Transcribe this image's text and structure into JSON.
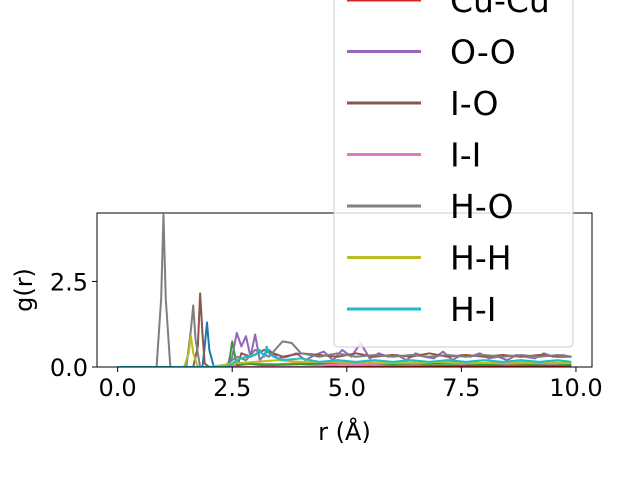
{
  "chart_data": {
    "type": "line",
    "title": "",
    "xlabel": "r (Å)",
    "ylabel": "g(r)",
    "xlim": [
      -0.45,
      10.35
    ],
    "ylim": [
      0,
      4.5
    ],
    "xticks": [
      0.0,
      2.5,
      5.0,
      7.5,
      10.0
    ],
    "xtick_labels": [
      "0.0",
      "2.5",
      "5.0",
      "7.5",
      "10.0"
    ],
    "yticks": [
      0.0,
      2.5
    ],
    "ytick_labels": [
      "0.0",
      "2.5"
    ],
    "grid": false,
    "legend": {
      "placement": "upper-right, overflowing above the axes",
      "entries": [
        {
          "label": "Cu-Cu",
          "color": "#d62728"
        },
        {
          "label": "O-O",
          "color": "#9467bd"
        },
        {
          "label": "I-O",
          "color": "#8c564b"
        },
        {
          "label": "I-I",
          "color": "#e377c2"
        },
        {
          "label": "H-O",
          "color": "#7f7f7f"
        },
        {
          "label": "H-H",
          "color": "#bcbd22"
        },
        {
          "label": "H-I",
          "color": "#17becf"
        }
      ]
    },
    "series": [
      {
        "name": "",
        "color": "#1f77b4",
        "x": [
          0.0,
          1.8,
          1.85,
          1.9,
          1.95,
          2.0,
          2.1,
          2.4,
          3.0,
          4.0,
          5.0,
          6.0,
          7.0,
          8.0,
          9.0,
          9.9
        ],
        "y": [
          0.0,
          0.0,
          0.0,
          0.6,
          1.3,
          0.5,
          0.0,
          0.0,
          0.0,
          0.0,
          0.02,
          0.02,
          0.03,
          0.03,
          0.04,
          0.04
        ]
      },
      {
        "name": "",
        "color": "#ff7f0e",
        "x": [
          0.0,
          2.3,
          2.6,
          3.0,
          3.5,
          4.0,
          4.5,
          5.0,
          5.5,
          6.0,
          6.5,
          7.0,
          7.5,
          8.0,
          8.5,
          9.0,
          9.5,
          9.9
        ],
        "y": [
          0.0,
          0.0,
          0.05,
          0.1,
          0.08,
          0.12,
          0.1,
          0.15,
          0.1,
          0.12,
          0.08,
          0.1,
          0.12,
          0.1,
          0.08,
          0.1,
          0.12,
          0.1
        ]
      },
      {
        "name": "",
        "color": "#2ca02c",
        "x": [
          0.0,
          2.4,
          2.45,
          2.5,
          2.55,
          2.6,
          2.8,
          3.2,
          4.0,
          5.0,
          6.0,
          7.0,
          8.0,
          9.0,
          9.9
        ],
        "y": [
          0.0,
          0.0,
          0.3,
          0.75,
          0.4,
          0.05,
          0.1,
          0.05,
          0.08,
          0.1,
          0.08,
          0.1,
          0.08,
          0.1,
          0.08
        ]
      },
      {
        "name": "Cu-Cu",
        "color": "#d62728",
        "x": [
          0.0,
          3.0,
          4.0,
          5.0,
          6.0,
          7.0,
          8.0,
          9.0,
          9.9
        ],
        "y": [
          0.0,
          0.0,
          0.0,
          0.0,
          0.01,
          0.0,
          0.01,
          0.0,
          0.0
        ]
      },
      {
        "name": "O-O",
        "color": "#9467bd",
        "x": [
          0.0,
          2.4,
          2.5,
          2.6,
          2.7,
          2.8,
          2.9,
          3.0,
          3.1,
          3.3,
          3.5,
          3.7,
          3.9,
          4.1,
          4.3,
          4.5,
          4.7,
          4.9,
          5.1,
          5.3,
          5.5,
          5.7,
          5.9,
          6.1,
          6.3,
          6.5,
          6.7,
          6.9,
          7.1,
          7.3,
          7.5,
          7.7,
          7.9,
          8.1,
          8.3,
          8.5,
          8.7,
          8.9,
          9.1,
          9.3,
          9.5,
          9.7,
          9.9
        ],
        "y": [
          0.0,
          0.0,
          0.3,
          1.0,
          0.6,
          0.9,
          0.3,
          0.95,
          0.2,
          0.5,
          0.25,
          0.3,
          0.4,
          0.2,
          0.35,
          0.45,
          0.2,
          0.5,
          0.3,
          0.7,
          0.25,
          0.4,
          0.3,
          0.35,
          0.2,
          0.4,
          0.3,
          0.25,
          0.45,
          0.2,
          0.35,
          0.3,
          0.4,
          0.25,
          0.3,
          0.2,
          0.35,
          0.3,
          0.25,
          0.4,
          0.3,
          0.35,
          0.3
        ]
      },
      {
        "name": "I-O",
        "color": "#8c564b",
        "x": [
          0.0,
          1.65,
          1.75,
          1.8,
          1.85,
          1.9,
          2.0,
          2.6,
          2.7,
          2.9,
          3.2,
          3.6,
          4.0,
          4.4,
          4.8,
          5.2,
          5.6,
          6.0,
          6.4,
          6.8,
          7.2,
          7.6,
          8.0,
          8.4,
          8.8,
          9.2,
          9.6,
          9.9
        ],
        "y": [
          0.0,
          0.0,
          0.6,
          2.15,
          1.0,
          0.1,
          0.0,
          0.0,
          0.4,
          0.3,
          0.5,
          0.3,
          0.4,
          0.35,
          0.3,
          0.4,
          0.3,
          0.35,
          0.3,
          0.4,
          0.3,
          0.35,
          0.3,
          0.35,
          0.3,
          0.35,
          0.3,
          0.3
        ]
      },
      {
        "name": "I-I",
        "color": "#e377c2",
        "x": [
          0.0,
          4.0,
          4.5,
          5.0,
          5.5,
          6.0,
          6.5,
          7.0,
          7.5,
          8.0,
          8.5,
          9.0,
          9.5,
          9.9
        ],
        "y": [
          0.0,
          0.0,
          0.05,
          0.1,
          0.08,
          0.12,
          0.1,
          0.15,
          0.1,
          0.12,
          0.1,
          0.12,
          0.1,
          0.12
        ]
      },
      {
        "name": "H-O",
        "color": "#7f7f7f",
        "x": [
          0.0,
          0.85,
          0.95,
          1.0,
          1.05,
          1.15,
          1.5,
          1.6,
          1.65,
          1.7,
          1.8,
          2.3,
          2.6,
          2.8,
          3.0,
          3.3,
          3.6,
          3.8,
          4.0,
          4.4,
          4.8,
          5.2,
          5.6,
          6.0,
          6.4,
          6.8,
          7.2,
          7.6,
          8.0,
          8.4,
          8.8,
          9.2,
          9.6,
          9.9
        ],
        "y": [
          0.0,
          0.0,
          2.0,
          4.45,
          2.0,
          0.0,
          0.0,
          1.1,
          1.8,
          0.8,
          0.0,
          0.0,
          0.3,
          0.2,
          0.5,
          0.3,
          0.75,
          0.7,
          0.4,
          0.3,
          0.4,
          0.3,
          0.35,
          0.3,
          0.35,
          0.3,
          0.35,
          0.3,
          0.35,
          0.3,
          0.35,
          0.3,
          0.35,
          0.3
        ]
      },
      {
        "name": "H-H",
        "color": "#bcbd22",
        "x": [
          0.0,
          1.45,
          1.55,
          1.6,
          1.65,
          1.75,
          2.0,
          2.5,
          3.0,
          3.5,
          4.0,
          5.0,
          6.0,
          7.0,
          8.0,
          9.0,
          9.9
        ],
        "y": [
          0.0,
          0.0,
          0.4,
          0.9,
          0.4,
          0.0,
          0.0,
          0.1,
          0.15,
          0.2,
          0.15,
          0.15,
          0.12,
          0.15,
          0.12,
          0.15,
          0.12
        ]
      },
      {
        "name": "H-I",
        "color": "#17becf",
        "x": [
          0.0,
          2.4,
          2.6,
          2.8,
          3.0,
          3.1,
          3.2,
          3.25,
          3.3,
          3.4,
          3.6,
          4.0,
          4.4,
          4.8,
          5.2,
          5.6,
          6.0,
          6.4,
          6.8,
          7.2,
          7.6,
          8.0,
          8.4,
          8.8,
          9.2,
          9.6,
          9.9
        ],
        "y": [
          0.0,
          0.0,
          0.2,
          0.3,
          0.35,
          0.5,
          0.3,
          0.6,
          0.4,
          0.3,
          0.2,
          0.25,
          0.15,
          0.2,
          0.15,
          0.2,
          0.15,
          0.2,
          0.15,
          0.2,
          0.15,
          0.2,
          0.15,
          0.2,
          0.15,
          0.2,
          0.15
        ]
      }
    ]
  }
}
